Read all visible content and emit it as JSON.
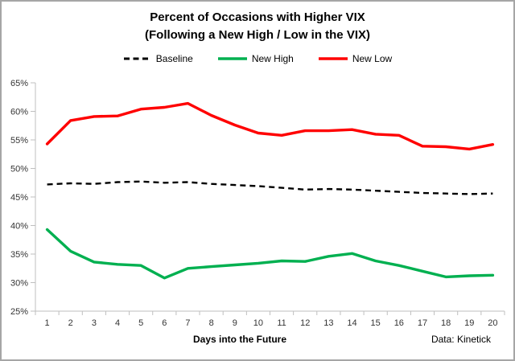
{
  "title": {
    "line1": "Percent of Occasions with Higher VIX",
    "line2": "(Following a New High / Low in the VIX)"
  },
  "legend": [
    {
      "label": "Baseline",
      "color": "#000000",
      "style": "dashed"
    },
    {
      "label": "New High",
      "color": "#00b050",
      "style": "solid"
    },
    {
      "label": "New Low",
      "color": "#ff0000",
      "style": "solid"
    }
  ],
  "footnote": "Data: Kinetick",
  "axis_colors": {
    "axis_line": "#bfbfbf",
    "tick_label": "#333333"
  },
  "chart_data": {
    "type": "line",
    "x": [
      1,
      2,
      3,
      4,
      5,
      6,
      7,
      8,
      9,
      10,
      11,
      12,
      13,
      14,
      15,
      16,
      17,
      18,
      19,
      20
    ],
    "xlabel": "Days into the Future",
    "ylabel": "",
    "ylim": [
      25,
      65
    ],
    "ytick_step": 5,
    "ytick_labels": [
      "25%",
      "30%",
      "35%",
      "40%",
      "45%",
      "50%",
      "55%",
      "60%",
      "65%"
    ],
    "grid": false,
    "legend_position": "top",
    "title": "Percent of Occasions with Higher VIX (Following a New High / Low in the VIX)",
    "series": [
      {
        "name": "Baseline",
        "color": "#000000",
        "dash": "dashed",
        "values": [
          47.2,
          47.4,
          47.3,
          47.6,
          47.7,
          47.5,
          47.6,
          47.3,
          47.1,
          46.9,
          46.6,
          46.3,
          46.4,
          46.3,
          46.1,
          45.9,
          45.7,
          45.6,
          45.5,
          45.6
        ]
      },
      {
        "name": "New High",
        "color": "#00b050",
        "dash": "solid",
        "values": [
          39.3,
          35.5,
          33.6,
          33.2,
          33.0,
          30.8,
          32.5,
          32.8,
          33.1,
          33.4,
          33.8,
          33.7,
          34.6,
          35.1,
          33.8,
          33.0,
          32.0,
          31.0,
          31.2,
          31.3
        ]
      },
      {
        "name": "New Low",
        "color": "#ff0000",
        "dash": "solid",
        "values": [
          54.3,
          58.4,
          59.1,
          59.2,
          60.4,
          60.7,
          61.4,
          59.3,
          57.6,
          56.2,
          55.8,
          56.6,
          56.6,
          56.8,
          56.0,
          55.8,
          53.9,
          53.8,
          53.4,
          54.2
        ]
      }
    ]
  }
}
